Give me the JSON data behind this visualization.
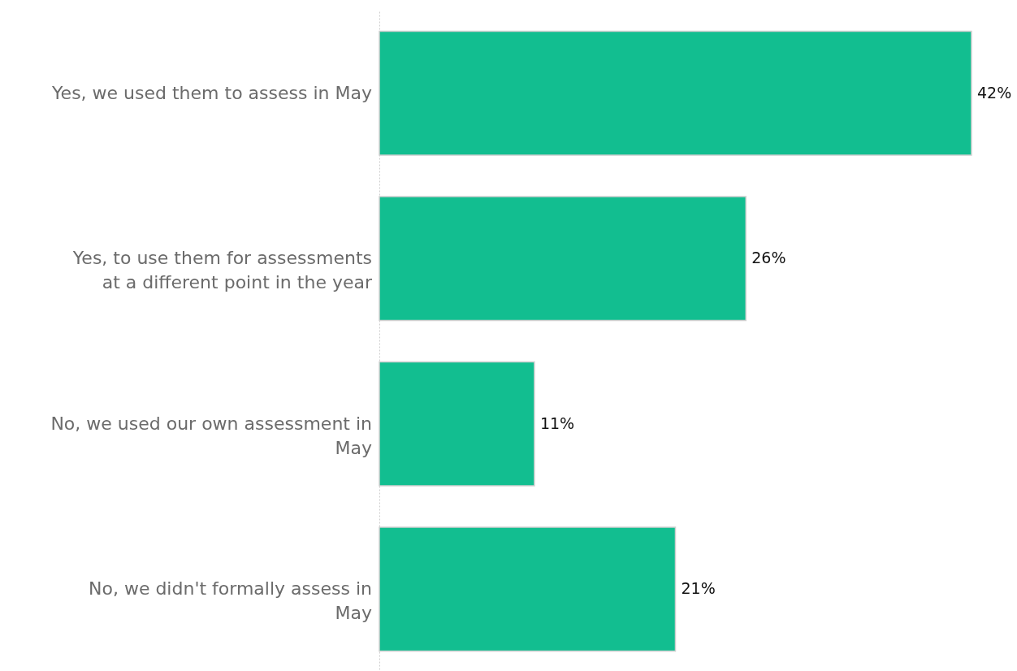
{
  "chart_data": {
    "type": "bar",
    "orientation": "horizontal",
    "categories": [
      "Yes, we used them to assess in May",
      "Yes, to use them for assessments at a different point in the year",
      "No, we used our own assessment in May",
      "No, we didn't formally assess in May"
    ],
    "values": [
      42,
      26,
      11,
      21
    ],
    "value_labels": [
      "42%",
      "26%",
      "11%",
      "21%"
    ],
    "color": "#12be90"
  }
}
